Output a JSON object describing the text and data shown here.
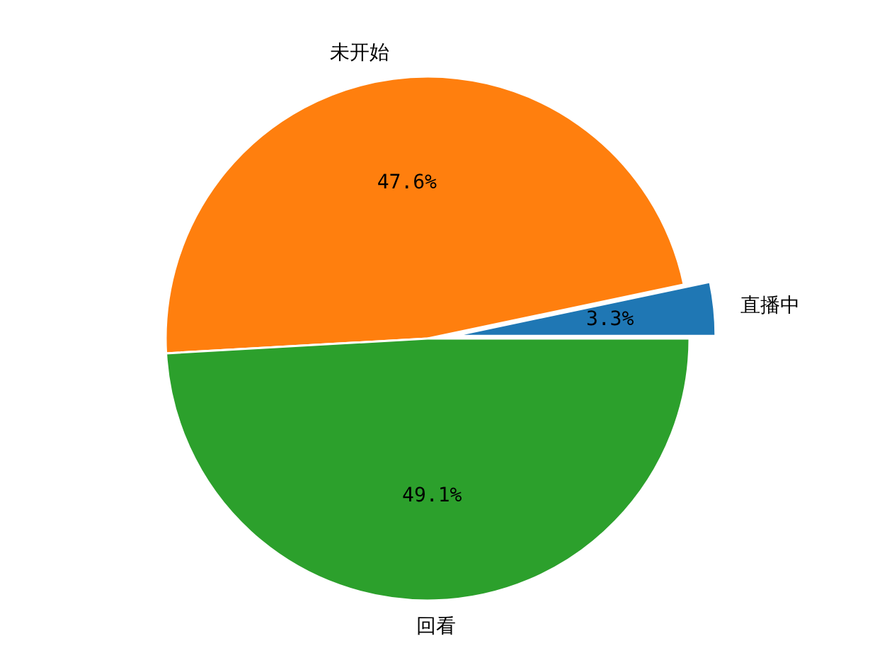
{
  "chart_data": {
    "type": "pie",
    "categories": [
      "直播中",
      "未开始",
      "回看"
    ],
    "values": [
      3.3,
      47.6,
      49.1
    ],
    "colors": [
      "#1f77b4",
      "#ff7f0e",
      "#2ca02c"
    ],
    "value_labels": [
      "3.3%",
      "47.6%",
      "49.1%"
    ]
  }
}
